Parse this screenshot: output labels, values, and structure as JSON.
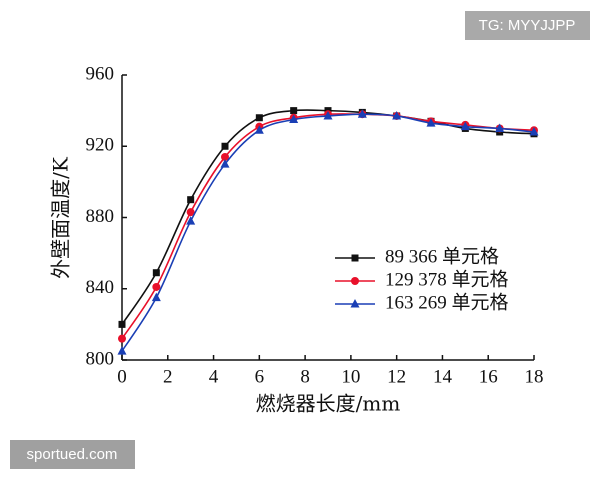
{
  "chart_data": {
    "type": "line",
    "x_label": "燃烧器长度/mm",
    "y_label": "外壁面温度/K",
    "x": [
      0,
      1.5,
      3,
      4.5,
      6,
      7.5,
      9,
      10.5,
      12,
      13.5,
      15,
      16.5,
      18
    ],
    "series": [
      {
        "name": "89 366 单元格",
        "color": "#111111",
        "marker": "square",
        "values": [
          820,
          849,
          890,
          920,
          936,
          940,
          940,
          939,
          937,
          934,
          930,
          928,
          927
        ]
      },
      {
        "name": "129 378 单元格",
        "color": "#e8102a",
        "marker": "circle",
        "values": [
          812,
          841,
          883,
          914,
          931,
          936,
          938,
          938,
          937,
          934,
          932,
          930,
          929
        ]
      },
      {
        "name": "163 269 单元格",
        "color": "#1a3fb5",
        "marker": "triangle",
        "values": [
          805,
          835,
          878,
          910,
          929,
          935,
          937,
          938,
          937,
          933,
          931,
          930,
          928
        ]
      }
    ],
    "xlim": [
      0,
      18
    ],
    "xticks": [
      0,
      2,
      4,
      6,
      8,
      10,
      12,
      14,
      16,
      18
    ],
    "ylim": [
      800,
      960
    ],
    "yticks": [
      800,
      840,
      880,
      920,
      960
    ],
    "grid": false,
    "legend": "right"
  },
  "watermarks": [
    "TG: MYYJJPP",
    "sportued.com"
  ]
}
